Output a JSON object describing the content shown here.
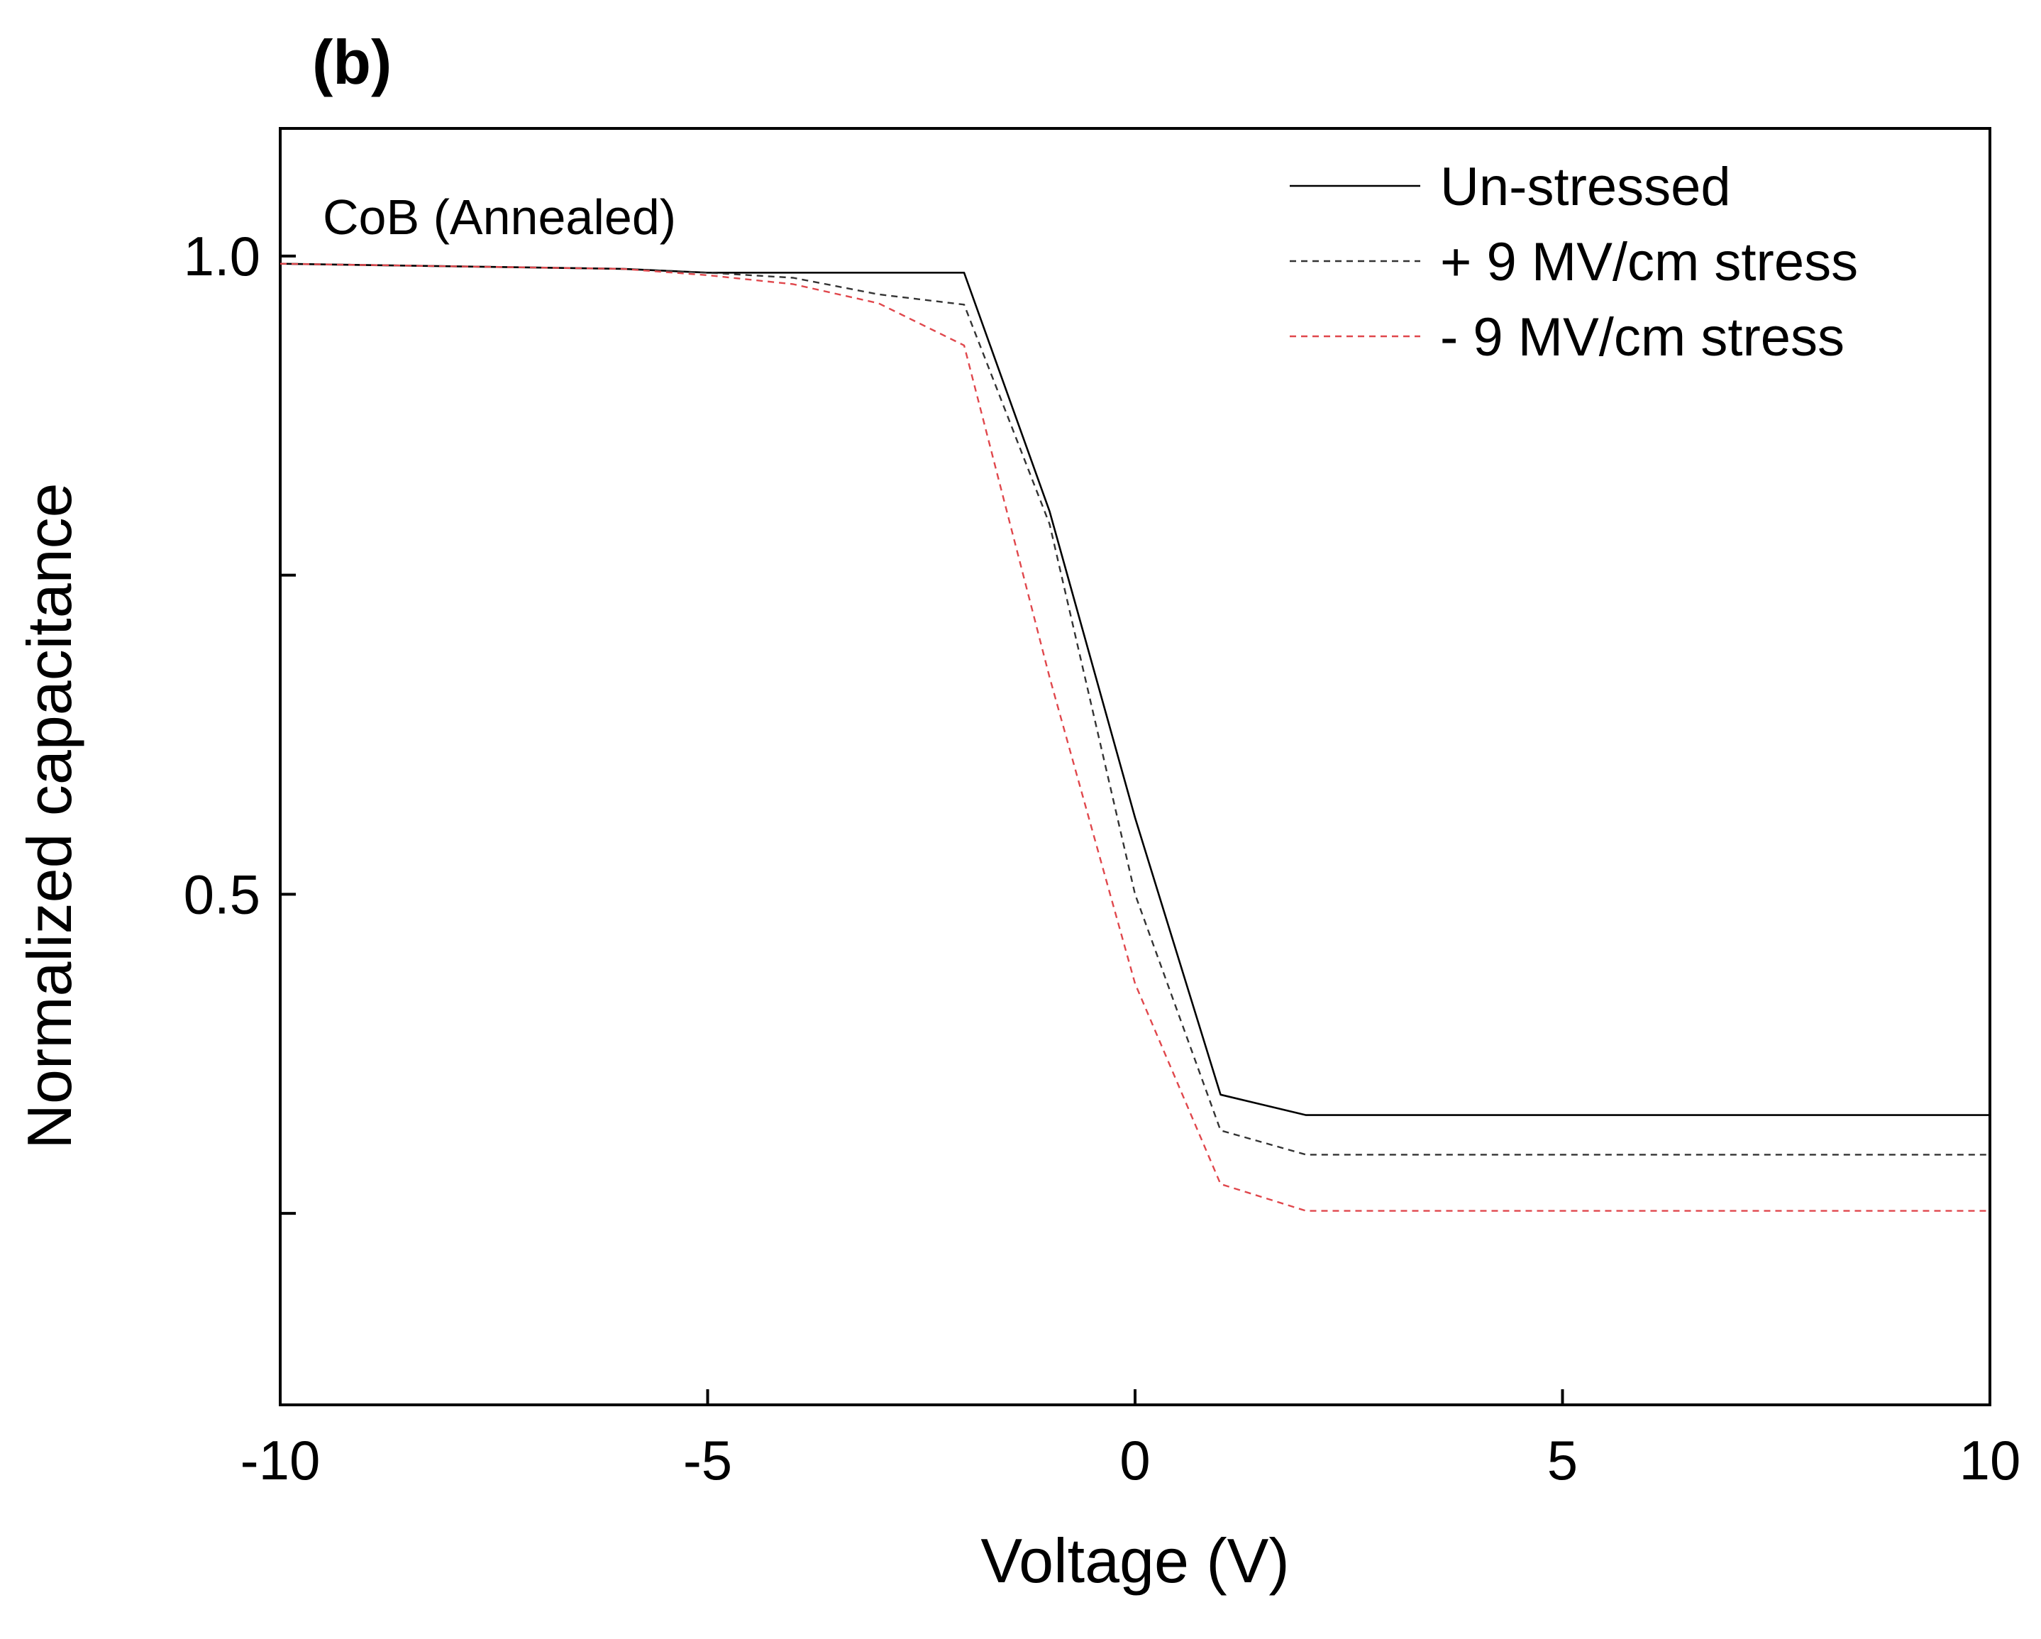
{
  "panel_label": "(b)",
  "chart_data": {
    "type": "line",
    "title": "",
    "xlabel": "Voltage (V)",
    "ylabel": "Normalized capacitance",
    "xlim": [
      -10,
      10
    ],
    "ylim": [
      0.1,
      1.1
    ],
    "x_ticks": [
      -10,
      -5,
      0,
      5,
      10
    ],
    "x_tick_labels": [
      "-10",
      "-5",
      "0",
      "5",
      "10"
    ],
    "y_ticks": [
      0.25,
      0.5,
      0.75,
      1.0
    ],
    "y_tick_labels": [
      "",
      "0.5",
      "",
      "1.0"
    ],
    "grid": false,
    "legend_position": "top-right",
    "annotation": "CoB (Annealed)",
    "series": [
      {
        "name": "Un-stressed",
        "color": "#000000",
        "style": "solid",
        "x": [
          -10,
          -8,
          -6,
          -5,
          -4,
          -3,
          -2,
          -1,
          0,
          1,
          2,
          10
        ],
        "y": [
          0.994,
          0.992,
          0.99,
          0.987,
          0.987,
          0.987,
          0.987,
          0.8,
          0.56,
          0.343,
          0.327,
          0.327
        ]
      },
      {
        "name": "+ 9 MV/cm stress",
        "color": "#333333",
        "style": "dashed",
        "x": [
          -10,
          -8,
          -6,
          -5,
          -4,
          -3,
          -2,
          -1,
          0,
          1,
          2,
          10
        ],
        "y": [
          0.994,
          0.992,
          0.99,
          0.987,
          0.983,
          0.97,
          0.962,
          0.79,
          0.5,
          0.315,
          0.296,
          0.296
        ]
      },
      {
        "name": "- 9 MV/cm stress",
        "color": "#e0474c",
        "style": "dashed",
        "x": [
          -10,
          -8,
          -6,
          -5,
          -4,
          -3,
          -2,
          -1,
          0,
          1,
          2,
          10
        ],
        "y": [
          0.994,
          0.992,
          0.99,
          0.985,
          0.978,
          0.963,
          0.93,
          0.67,
          0.43,
          0.273,
          0.252,
          0.252
        ]
      }
    ]
  }
}
